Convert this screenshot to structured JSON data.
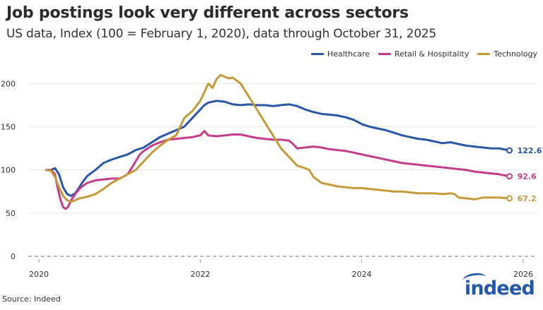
{
  "header": {
    "title": "Job postings look very different across sectors",
    "subtitle": "US data, Index (100 = February 1, 2020), data through October 31, 2025"
  },
  "footer": {
    "source": "Source: Indeed",
    "logo_text": "indeed"
  },
  "chart_data": {
    "type": "line",
    "title": "Job postings look very different across sectors",
    "subtitle": "US data, Index (100 = February 1, 2020), data through October 31, 2025",
    "xlabel": "",
    "ylabel": "",
    "xlim": [
      2020,
      2026
    ],
    "ylim": [
      0,
      215
    ],
    "yticks": [
      0,
      50,
      100,
      150,
      200
    ],
    "xticks": [
      2020,
      2022,
      2024,
      2026
    ],
    "grid": true,
    "legend_position": "top-right",
    "reference_line": 0,
    "series": [
      {
        "name": "Healthcare",
        "color": "#2a56a5",
        "end_label": "122.6",
        "points": [
          [
            2020.09,
            100
          ],
          [
            2020.15,
            100
          ],
          [
            2020.2,
            102
          ],
          [
            2020.25,
            95
          ],
          [
            2020.3,
            80
          ],
          [
            2020.35,
            72
          ],
          [
            2020.4,
            70
          ],
          [
            2020.45,
            73
          ],
          [
            2020.5,
            80
          ],
          [
            2020.55,
            87
          ],
          [
            2020.6,
            93
          ],
          [
            2020.7,
            100
          ],
          [
            2020.8,
            108
          ],
          [
            2020.9,
            112
          ],
          [
            2021.0,
            115
          ],
          [
            2021.1,
            118
          ],
          [
            2021.2,
            123
          ],
          [
            2021.3,
            126
          ],
          [
            2021.4,
            132
          ],
          [
            2021.5,
            138
          ],
          [
            2021.6,
            142
          ],
          [
            2021.7,
            146
          ],
          [
            2021.8,
            150
          ],
          [
            2021.9,
            160
          ],
          [
            2022.0,
            170
          ],
          [
            2022.05,
            175
          ],
          [
            2022.1,
            178
          ],
          [
            2022.2,
            180
          ],
          [
            2022.3,
            179
          ],
          [
            2022.4,
            176
          ],
          [
            2022.5,
            175
          ],
          [
            2022.6,
            176
          ],
          [
            2022.7,
            175
          ],
          [
            2022.8,
            175
          ],
          [
            2022.9,
            174
          ],
          [
            2023.0,
            175
          ],
          [
            2023.1,
            176
          ],
          [
            2023.2,
            174
          ],
          [
            2023.3,
            170
          ],
          [
            2023.4,
            167
          ],
          [
            2023.5,
            165
          ],
          [
            2023.6,
            164
          ],
          [
            2023.7,
            163
          ],
          [
            2023.8,
            161
          ],
          [
            2023.9,
            158
          ],
          [
            2024.0,
            153
          ],
          [
            2024.1,
            150
          ],
          [
            2024.2,
            148
          ],
          [
            2024.3,
            146
          ],
          [
            2024.4,
            143
          ],
          [
            2024.5,
            140
          ],
          [
            2024.6,
            138
          ],
          [
            2024.7,
            136
          ],
          [
            2024.8,
            135
          ],
          [
            2024.9,
            133
          ],
          [
            2025.0,
            131
          ],
          [
            2025.1,
            132
          ],
          [
            2025.2,
            130
          ],
          [
            2025.3,
            128
          ],
          [
            2025.4,
            127
          ],
          [
            2025.5,
            126
          ],
          [
            2025.6,
            125
          ],
          [
            2025.7,
            125
          ],
          [
            2025.83,
            122.6
          ]
        ]
      },
      {
        "name": "Retail & Hospitality",
        "color": "#c43d8a",
        "end_label": "92.6",
        "points": [
          [
            2020.09,
            100
          ],
          [
            2020.15,
            100
          ],
          [
            2020.2,
            95
          ],
          [
            2020.23,
            80
          ],
          [
            2020.27,
            65
          ],
          [
            2020.3,
            57
          ],
          [
            2020.33,
            55
          ],
          [
            2020.36,
            57
          ],
          [
            2020.4,
            65
          ],
          [
            2020.45,
            72
          ],
          [
            2020.5,
            78
          ],
          [
            2020.55,
            82
          ],
          [
            2020.6,
            85
          ],
          [
            2020.7,
            88
          ],
          [
            2020.8,
            89
          ],
          [
            2020.9,
            90
          ],
          [
            2021.0,
            90
          ],
          [
            2021.1,
            95
          ],
          [
            2021.2,
            110
          ],
          [
            2021.25,
            118
          ],
          [
            2021.3,
            122
          ],
          [
            2021.4,
            128
          ],
          [
            2021.5,
            132
          ],
          [
            2021.6,
            135
          ],
          [
            2021.7,
            136
          ],
          [
            2021.8,
            137
          ],
          [
            2021.9,
            138
          ],
          [
            2022.0,
            140
          ],
          [
            2022.05,
            145
          ],
          [
            2022.1,
            140
          ],
          [
            2022.2,
            139
          ],
          [
            2022.3,
            140
          ],
          [
            2022.4,
            141
          ],
          [
            2022.5,
            141
          ],
          [
            2022.6,
            139
          ],
          [
            2022.7,
            137
          ],
          [
            2022.8,
            136
          ],
          [
            2022.9,
            135
          ],
          [
            2023.0,
            135
          ],
          [
            2023.1,
            134
          ],
          [
            2023.15,
            130
          ],
          [
            2023.2,
            125
          ],
          [
            2023.3,
            126
          ],
          [
            2023.4,
            127
          ],
          [
            2023.5,
            126
          ],
          [
            2023.6,
            124
          ],
          [
            2023.7,
            123
          ],
          [
            2023.8,
            122
          ],
          [
            2023.9,
            120
          ],
          [
            2024.0,
            118
          ],
          [
            2024.1,
            116
          ],
          [
            2024.2,
            114
          ],
          [
            2024.3,
            112
          ],
          [
            2024.4,
            110
          ],
          [
            2024.5,
            108
          ],
          [
            2024.6,
            107
          ],
          [
            2024.7,
            106
          ],
          [
            2024.8,
            105
          ],
          [
            2024.9,
            104
          ],
          [
            2025.0,
            103
          ],
          [
            2025.1,
            102
          ],
          [
            2025.2,
            101
          ],
          [
            2025.3,
            100
          ],
          [
            2025.4,
            98
          ],
          [
            2025.5,
            97
          ],
          [
            2025.6,
            96
          ],
          [
            2025.7,
            95
          ],
          [
            2025.83,
            92.6
          ]
        ]
      },
      {
        "name": "Technology",
        "color": "#c49a3c",
        "end_label": "67.2",
        "points": [
          [
            2020.09,
            100
          ],
          [
            2020.15,
            99
          ],
          [
            2020.2,
            92
          ],
          [
            2020.25,
            80
          ],
          [
            2020.3,
            70
          ],
          [
            2020.35,
            65
          ],
          [
            2020.4,
            63
          ],
          [
            2020.45,
            65
          ],
          [
            2020.5,
            67
          ],
          [
            2020.6,
            69
          ],
          [
            2020.7,
            72
          ],
          [
            2020.8,
            78
          ],
          [
            2020.9,
            85
          ],
          [
            2021.0,
            90
          ],
          [
            2021.1,
            95
          ],
          [
            2021.2,
            100
          ],
          [
            2021.3,
            110
          ],
          [
            2021.4,
            120
          ],
          [
            2021.5,
            128
          ],
          [
            2021.6,
            135
          ],
          [
            2021.7,
            140
          ],
          [
            2021.75,
            150
          ],
          [
            2021.8,
            160
          ],
          [
            2021.9,
            168
          ],
          [
            2022.0,
            180
          ],
          [
            2022.05,
            190
          ],
          [
            2022.1,
            200
          ],
          [
            2022.15,
            195
          ],
          [
            2022.2,
            205
          ],
          [
            2022.25,
            210
          ],
          [
            2022.3,
            208
          ],
          [
            2022.35,
            206
          ],
          [
            2022.4,
            207
          ],
          [
            2022.5,
            200
          ],
          [
            2022.6,
            185
          ],
          [
            2022.7,
            170
          ],
          [
            2022.8,
            155
          ],
          [
            2022.9,
            140
          ],
          [
            2023.0,
            125
          ],
          [
            2023.1,
            115
          ],
          [
            2023.2,
            105
          ],
          [
            2023.3,
            102
          ],
          [
            2023.35,
            100
          ],
          [
            2023.4,
            92
          ],
          [
            2023.5,
            85
          ],
          [
            2023.6,
            83
          ],
          [
            2023.7,
            81
          ],
          [
            2023.8,
            80
          ],
          [
            2023.9,
            79
          ],
          [
            2024.0,
            79
          ],
          [
            2024.1,
            78
          ],
          [
            2024.2,
            77
          ],
          [
            2024.3,
            76
          ],
          [
            2024.4,
            75
          ],
          [
            2024.5,
            75
          ],
          [
            2024.6,
            74
          ],
          [
            2024.7,
            73
          ],
          [
            2024.8,
            73
          ],
          [
            2024.9,
            73
          ],
          [
            2025.0,
            72
          ],
          [
            2025.1,
            73
          ],
          [
            2025.15,
            72
          ],
          [
            2025.2,
            68
          ],
          [
            2025.3,
            67
          ],
          [
            2025.4,
            66
          ],
          [
            2025.5,
            68
          ],
          [
            2025.6,
            68
          ],
          [
            2025.7,
            68
          ],
          [
            2025.83,
            67.2
          ]
        ]
      }
    ]
  }
}
